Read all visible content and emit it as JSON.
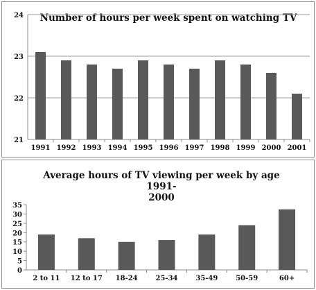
{
  "chart_data": [
    {
      "type": "bar",
      "title": "Number of hours per week spent on watching TV",
      "xlabel": "",
      "ylabel": "",
      "categories": [
        "1991",
        "1992",
        "1993",
        "1994",
        "1995",
        "1996",
        "1997",
        "1998",
        "1999",
        "2000",
        "2001"
      ],
      "values": [
        23.1,
        22.9,
        22.8,
        22.7,
        22.9,
        22.8,
        22.7,
        22.9,
        22.8,
        22.6,
        22.1
      ],
      "ylim": [
        21,
        24
      ],
      "yticks": [
        "21",
        "22",
        "23",
        "24"
      ],
      "grid": true,
      "legend": "none",
      "bar_color": "#595959"
    },
    {
      "type": "bar",
      "title": "Average hours of TV viewing per week by age 1991-2000",
      "title_lines": [
        "Average hours of TV viewing per week by age 1991-",
        "2000"
      ],
      "xlabel": "",
      "ylabel": "",
      "categories": [
        "2 to 11",
        "12 to 17",
        "18-24",
        "25-34",
        "35-49",
        "50-59",
        "60+"
      ],
      "values": [
        19,
        17,
        15,
        16,
        19,
        24,
        32.5
      ],
      "ylim": [
        0,
        35
      ],
      "yticks": [
        "0",
        "5",
        "10",
        "15",
        "20",
        "25",
        "30",
        "35"
      ],
      "grid": false,
      "legend": "none",
      "bar_color": "#595959"
    }
  ]
}
